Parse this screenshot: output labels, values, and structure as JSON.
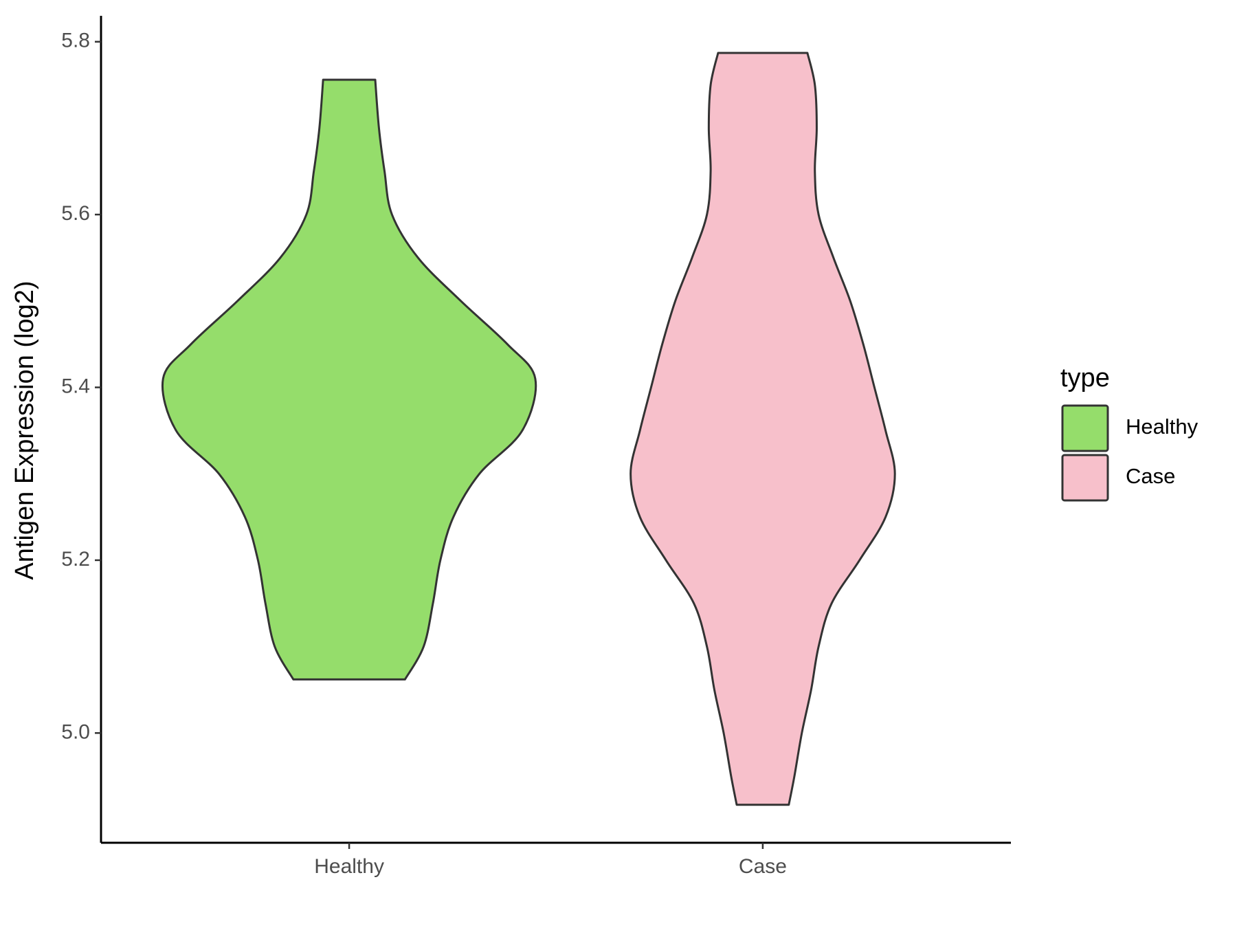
{
  "chart_data": {
    "type": "violin",
    "y_label": "Antigen Expression (log2)",
    "legend_title": "type",
    "legend_position": "right",
    "categories": [
      "Healthy",
      "Case"
    ],
    "ylim": [
      4.873,
      5.83
    ],
    "yticks": [
      {
        "value": 5,
        "label": "5.0"
      },
      5.2,
      5.4,
      5.6,
      5.8
    ],
    "grid": false,
    "series": [
      {
        "name": "Healthy",
        "color": "#95dd6b",
        "y": [
          5.756,
          5.7,
          5.65,
          5.6,
          5.55,
          5.5,
          5.45,
          5.41,
          5.35,
          5.3,
          5.25,
          5.2,
          5.15,
          5.1,
          5.062
        ],
        "width": [
          0.14,
          0.16,
          0.19,
          0.23,
          0.37,
          0.6,
          0.85,
          1.0,
          0.93,
          0.7,
          0.56,
          0.49,
          0.45,
          0.4,
          0.3
        ]
      },
      {
        "name": "Case",
        "color": "#f7c0cb",
        "y": [
          5.787,
          5.75,
          5.7,
          5.65,
          5.6,
          5.55,
          5.5,
          5.45,
          5.4,
          5.35,
          5.3,
          5.25,
          5.2,
          5.15,
          5.1,
          5.05,
          5.0,
          4.95,
          4.917
        ],
        "width": [
          0.24,
          0.28,
          0.29,
          0.28,
          0.3,
          0.38,
          0.47,
          0.54,
          0.6,
          0.66,
          0.71,
          0.66,
          0.52,
          0.37,
          0.3,
          0.26,
          0.21,
          0.17,
          0.14
        ]
      }
    ]
  }
}
